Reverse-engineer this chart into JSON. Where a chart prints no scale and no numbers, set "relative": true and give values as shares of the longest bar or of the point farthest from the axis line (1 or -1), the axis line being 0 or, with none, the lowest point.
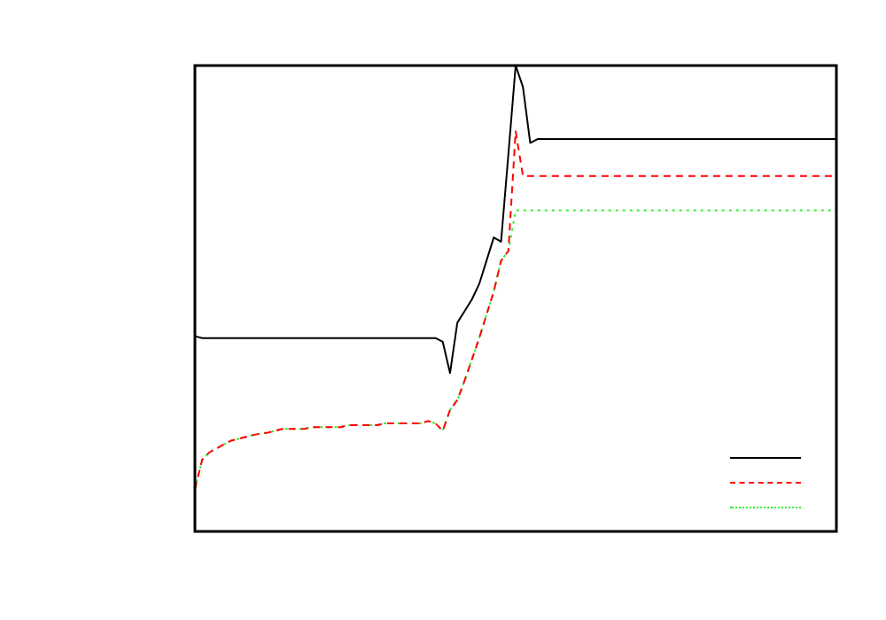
{
  "chart_data": {
    "type": "line",
    "relative": true,
    "marker": "none",
    "categories": [
      null,
      null,
      null,
      null,
      null,
      null,
      null,
      null,
      null,
      null,
      null,
      null,
      null,
      null,
      null,
      null,
      null,
      null,
      null,
      null,
      null,
      null,
      null,
      null,
      null,
      null,
      null,
      null,
      null,
      null,
      null,
      null,
      null,
      null,
      null,
      null,
      null,
      null,
      null,
      null,
      null,
      null,
      null,
      null,
      null,
      null,
      null,
      null,
      null,
      null,
      null,
      null,
      null,
      null,
      null,
      null,
      null,
      null,
      null,
      null,
      null,
      null,
      null,
      null,
      null,
      null,
      null,
      null,
      null,
      null,
      null,
      null,
      null,
      null,
      null,
      null,
      null,
      null,
      null,
      null,
      null,
      null,
      null,
      null,
      null,
      null,
      null,
      null,
      null
    ],
    "series": [
      {
        "color": "#000000",
        "line_style": "solid",
        "values": [
          0.419,
          0.415,
          0.415,
          0.415,
          0.415,
          0.415,
          0.415,
          0.415,
          0.415,
          0.415,
          0.415,
          0.415,
          0.415,
          0.415,
          0.415,
          0.415,
          0.415,
          0.415,
          0.415,
          0.415,
          0.415,
          0.415,
          0.415,
          0.415,
          0.415,
          0.415,
          0.415,
          0.415,
          0.415,
          0.415,
          0.415,
          0.415,
          0.415,
          0.415,
          0.407,
          0.34,
          0.448,
          0.473,
          0.498,
          0.531,
          0.581,
          0.631,
          0.622,
          0.809,
          1,
          0.954,
          0.834,
          0.842,
          0.842,
          0.842,
          0.842,
          0.842,
          0.842,
          0.842,
          0.842,
          0.842,
          0.842,
          0.842,
          0.842,
          0.842,
          0.842,
          0.842,
          0.842,
          0.842,
          0.842,
          0.842,
          0.842,
          0.842,
          0.842,
          0.842,
          0.842,
          0.842,
          0.842,
          0.842,
          0.842,
          0.842,
          0.842,
          0.842,
          0.842,
          0.842,
          0.842,
          0.842,
          0.842,
          0.842,
          0.842,
          0.842,
          0.842,
          0.842,
          0.842
        ]
      },
      {
        "color": "#ff0000",
        "line_style": "dashed",
        "values": [
          0.091,
          0.154,
          0.17,
          0.178,
          0.187,
          0.195,
          0.199,
          0.203,
          0.207,
          0.21,
          0.212,
          0.216,
          0.22,
          0.22,
          0.22,
          0.22,
          0.224,
          0.224,
          0.224,
          0.224,
          0.224,
          0.228,
          0.228,
          0.228,
          0.228,
          0.228,
          0.232,
          0.232,
          0.232,
          0.232,
          0.232,
          0.232,
          0.237,
          0.232,
          0.216,
          0.261,
          0.282,
          0.324,
          0.369,
          0.415,
          0.465,
          0.515,
          0.581,
          0.602,
          0.859,
          0.763,
          0.763,
          0.763,
          0.763,
          0.763,
          0.763,
          0.763,
          0.763,
          0.763,
          0.763,
          0.763,
          0.763,
          0.763,
          0.763,
          0.763,
          0.763,
          0.763,
          0.763,
          0.763,
          0.763,
          0.763,
          0.763,
          0.763,
          0.763,
          0.763,
          0.763,
          0.763,
          0.763,
          0.763,
          0.763,
          0.763,
          0.763,
          0.763,
          0.763,
          0.763,
          0.763,
          0.763,
          0.763,
          0.763,
          0.763,
          0.763,
          0.763,
          0.763,
          0.763
        ]
      },
      {
        "color": "#33ee33",
        "line_style": "dotted",
        "values": [
          0.091,
          0.154,
          0.17,
          0.178,
          0.187,
          0.195,
          0.199,
          0.203,
          0.207,
          0.21,
          0.212,
          0.216,
          0.22,
          0.22,
          0.22,
          0.22,
          0.224,
          0.224,
          0.224,
          0.224,
          0.224,
          0.228,
          0.228,
          0.228,
          0.228,
          0.228,
          0.232,
          0.232,
          0.232,
          0.232,
          0.232,
          0.232,
          0.237,
          0.232,
          0.216,
          0.261,
          0.282,
          0.324,
          0.369,
          0.415,
          0.465,
          0.515,
          0.581,
          0.602,
          0.689,
          0.689,
          0.689,
          0.689,
          0.689,
          0.689,
          0.689,
          0.689,
          0.689,
          0.689,
          0.689,
          0.689,
          0.689,
          0.689,
          0.689,
          0.689,
          0.689,
          0.689,
          0.689,
          0.689,
          0.689,
          0.689,
          0.689,
          0.689,
          0.689,
          0.689,
          0.689,
          0.689,
          0.689,
          0.689,
          0.689,
          0.689,
          0.689,
          0.689,
          0.689,
          0.689,
          0.689,
          0.689,
          0.689,
          0.689,
          0.689,
          0.689,
          0.689,
          0.689,
          0.693
        ]
      }
    ]
  }
}
